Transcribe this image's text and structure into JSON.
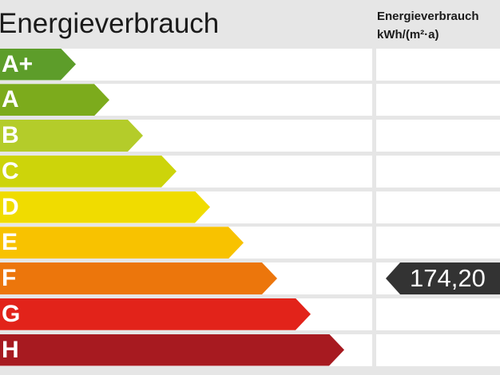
{
  "title": "Energieverbrauch",
  "column_title": {
    "line1": "Energieverbrauch",
    "line2": "kWh/(m²·a)"
  },
  "classes": [
    {
      "label": "A+",
      "color": "#5d9d2a"
    },
    {
      "label": "A",
      "color": "#7cab1c"
    },
    {
      "label": "B",
      "color": "#b4cc2a"
    },
    {
      "label": "C",
      "color": "#cdd40a"
    },
    {
      "label": "D",
      "color": "#f0dc00"
    },
    {
      "label": "E",
      "color": "#f8c200"
    },
    {
      "label": "F",
      "color": "#ec760c"
    },
    {
      "label": "G",
      "color": "#e2231a"
    },
    {
      "label": "H",
      "color": "#a71a20"
    }
  ],
  "value": {
    "class_index": 6,
    "text": "174,20",
    "color": "#333333"
  }
}
